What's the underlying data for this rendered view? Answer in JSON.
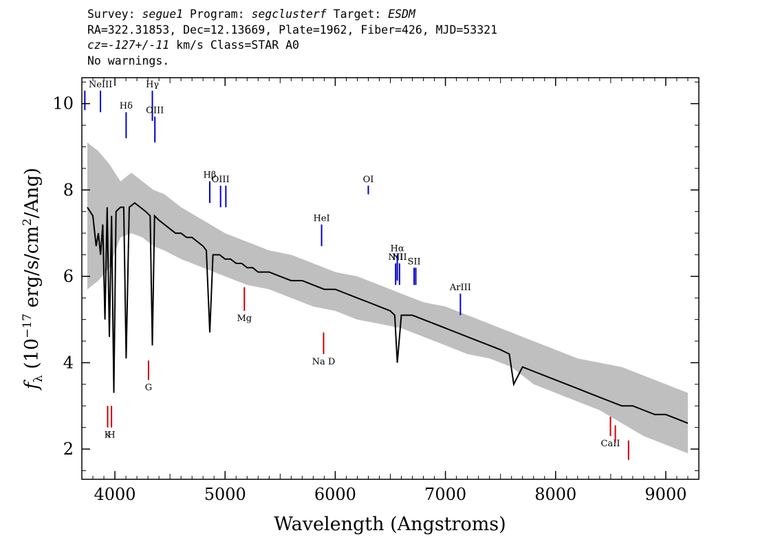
{
  "header": {
    "line1": {
      "survey_label": "Survey: ",
      "survey": "segue1",
      "program_label": " Program: ",
      "program": "segclusterf",
      "target_label": " Target: ",
      "target": "ESDM"
    },
    "line2": "RA=322.31853, Dec=12.13669, Plate=1962, Fiber=426, MJD=53321",
    "line3": {
      "cz_label": "cz=",
      "cz_value": "-127+/-11",
      "rest": " km/s Class=STAR A0"
    },
    "line4": "No warnings."
  },
  "chart_data": {
    "type": "line",
    "xlabel": "Wavelength (Angstroms)",
    "ylabel": "fλ (10⁻¹⁷ erg/s/cm²/Ang)",
    "ylabel_parts": {
      "f": "f",
      "sub": "λ",
      "pre": " (10",
      "exp1": "−17",
      "mid": " erg/s/cm",
      "exp2": "2",
      "post": "/Ang)"
    },
    "xlim": [
      3700,
      9300
    ],
    "ylim": [
      1.3,
      10.6
    ],
    "xticks": [
      4000,
      5000,
      6000,
      7000,
      8000,
      9000
    ],
    "yticks": [
      2,
      4,
      6,
      8,
      10
    ],
    "grid": false,
    "series": [
      {
        "role": "flux",
        "color": "#000000",
        "x": [
          3750,
          3800,
          3830,
          3850,
          3870,
          3890,
          3910,
          3930,
          3950,
          3970,
          3990,
          4010,
          4050,
          4080,
          4102,
          4130,
          4180,
          4230,
          4280,
          4320,
          4340,
          4360,
          4400,
          4450,
          4500,
          4550,
          4600,
          4650,
          4700,
          4750,
          4800,
          4830,
          4861,
          4890,
          4950,
          5000,
          5050,
          5100,
          5150,
          5200,
          5250,
          5300,
          5400,
          5500,
          5600,
          5700,
          5800,
          5900,
          6000,
          6100,
          6200,
          6300,
          6400,
          6500,
          6540,
          6563,
          6600,
          6700,
          6800,
          6900,
          7000,
          7100,
          7200,
          7300,
          7400,
          7500,
          7580,
          7620,
          7700,
          7800,
          7900,
          8000,
          8100,
          8200,
          8300,
          8400,
          8500,
          8600,
          8700,
          8800,
          8900,
          9000,
          9100,
          9200
        ],
        "y": [
          7.6,
          7.4,
          6.7,
          7.0,
          6.5,
          7.2,
          5.0,
          7.6,
          4.6,
          7.4,
          3.3,
          7.5,
          7.6,
          7.6,
          4.1,
          7.6,
          7.7,
          7.6,
          7.5,
          7.4,
          4.4,
          7.4,
          7.3,
          7.2,
          7.1,
          7.0,
          7.0,
          6.9,
          6.9,
          6.8,
          6.7,
          6.6,
          4.7,
          6.5,
          6.5,
          6.4,
          6.4,
          6.3,
          6.3,
          6.2,
          6.2,
          6.1,
          6.1,
          6.0,
          5.9,
          5.9,
          5.8,
          5.7,
          5.7,
          5.6,
          5.5,
          5.4,
          5.3,
          5.2,
          5.1,
          4.0,
          5.1,
          5.1,
          5.0,
          4.9,
          4.8,
          4.7,
          4.6,
          4.5,
          4.4,
          4.3,
          4.2,
          3.5,
          3.9,
          3.8,
          3.7,
          3.6,
          3.5,
          3.4,
          3.3,
          3.2,
          3.1,
          3.0,
          3.0,
          2.9,
          2.8,
          2.8,
          2.7,
          2.6
        ]
      },
      {
        "role": "error",
        "color": "#bfbfbf",
        "x": [
          3750,
          3850,
          3950,
          4050,
          4150,
          4250,
          4350,
          4450,
          4600,
          4800,
          5000,
          5200,
          5400,
          5600,
          5800,
          6000,
          6200,
          6400,
          6600,
          6800,
          7000,
          7200,
          7400,
          7600,
          7800,
          8000,
          8200,
          8400,
          8600,
          8800,
          9000,
          9200
        ],
        "lower": [
          5.7,
          5.9,
          6.2,
          6.9,
          7.0,
          6.9,
          6.7,
          6.6,
          6.4,
          6.2,
          6.0,
          5.8,
          5.7,
          5.5,
          5.3,
          5.2,
          5.0,
          4.9,
          4.8,
          4.6,
          4.4,
          4.2,
          4.1,
          3.9,
          3.5,
          3.3,
          3.1,
          2.9,
          2.6,
          2.3,
          2.1,
          1.9
        ],
        "upper": [
          9.1,
          8.9,
          8.6,
          8.2,
          8.4,
          8.2,
          8.0,
          7.9,
          7.6,
          7.3,
          7.0,
          6.8,
          6.6,
          6.5,
          6.3,
          6.1,
          6.0,
          5.8,
          5.6,
          5.4,
          5.3,
          5.1,
          4.9,
          4.7,
          4.5,
          4.3,
          4.1,
          4.0,
          3.9,
          3.7,
          3.5,
          3.3
        ]
      }
    ],
    "emission_lines": [
      {
        "label": "",
        "x": 3727,
        "y0": 9.85,
        "y1": 10.3,
        "color": "#0000cc"
      },
      {
        "label": "NeIII",
        "x": 3869,
        "y0": 9.8,
        "y1": 10.3,
        "color": "#0000cc"
      },
      {
        "label": "Hδ",
        "x": 4102,
        "y0": 9.2,
        "y1": 9.8,
        "color": "#0000cc"
      },
      {
        "label": "Hγ",
        "x": 4340,
        "y0": 9.6,
        "y1": 10.3,
        "color": "#0000cc"
      },
      {
        "label": "OIII",
        "x": 4363,
        "y0": 9.1,
        "y1": 9.7,
        "color": "#0000cc"
      },
      {
        "label": "Hβ",
        "x": 4861,
        "y0": 7.7,
        "y1": 8.2,
        "color": "#0000cc"
      },
      {
        "label": "OIII",
        "x": 4959,
        "y0": 7.6,
        "y1": 8.1,
        "color": "#0000cc"
      },
      {
        "label": "",
        "x": 5007,
        "y0": 7.6,
        "y1": 8.1,
        "color": "#0000cc"
      },
      {
        "label": "HeI",
        "x": 5876,
        "y0": 6.7,
        "y1": 7.2,
        "color": "#0000cc"
      },
      {
        "label": "OI",
        "x": 6300,
        "y0": 7.9,
        "y1": 8.1,
        "color": "#0000cc"
      },
      {
        "label": "NII",
        "x": 6548,
        "y0": 5.8,
        "y1": 6.3,
        "color": "#0000cc"
      },
      {
        "label": "Hα",
        "x": 6563,
        "y0": 5.9,
        "y1": 6.5,
        "color": "#0000cc"
      },
      {
        "label": "NII",
        "x": 6583,
        "y0": 5.8,
        "y1": 6.3,
        "color": "#0000cc"
      },
      {
        "label": "SII",
        "x": 6716,
        "y0": 5.8,
        "y1": 6.2,
        "color": "#0000cc"
      },
      {
        "label": "",
        "x": 6731,
        "y0": 5.8,
        "y1": 6.2,
        "color": "#0000cc"
      },
      {
        "label": "ArIII",
        "x": 7136,
        "y0": 5.1,
        "y1": 5.6,
        "color": "#0000cc"
      }
    ],
    "absorption_lines": [
      {
        "label": "K",
        "x": 3934,
        "y0": 2.5,
        "y1": 3.0,
        "color": "#cc0000"
      },
      {
        "label": "H",
        "x": 3969,
        "y0": 2.5,
        "y1": 3.0,
        "color": "#cc0000"
      },
      {
        "label": "G",
        "x": 4305,
        "y0": 3.6,
        "y1": 4.05,
        "color": "#cc0000"
      },
      {
        "label": "Mg",
        "x": 5175,
        "y0": 5.2,
        "y1": 5.75,
        "color": "#cc0000"
      },
      {
        "label": "Na D",
        "x": 5894,
        "y0": 4.2,
        "y1": 4.7,
        "color": "#cc0000"
      },
      {
        "label": "CaII",
        "x": 8498,
        "y0": 2.3,
        "y1": 2.75,
        "color": "#cc0000"
      },
      {
        "label": "",
        "x": 8542,
        "y0": 2.15,
        "y1": 2.55,
        "color": "#cc0000"
      },
      {
        "label": "",
        "x": 8662,
        "y0": 1.75,
        "y1": 2.2,
        "color": "#cc0000"
      }
    ]
  }
}
